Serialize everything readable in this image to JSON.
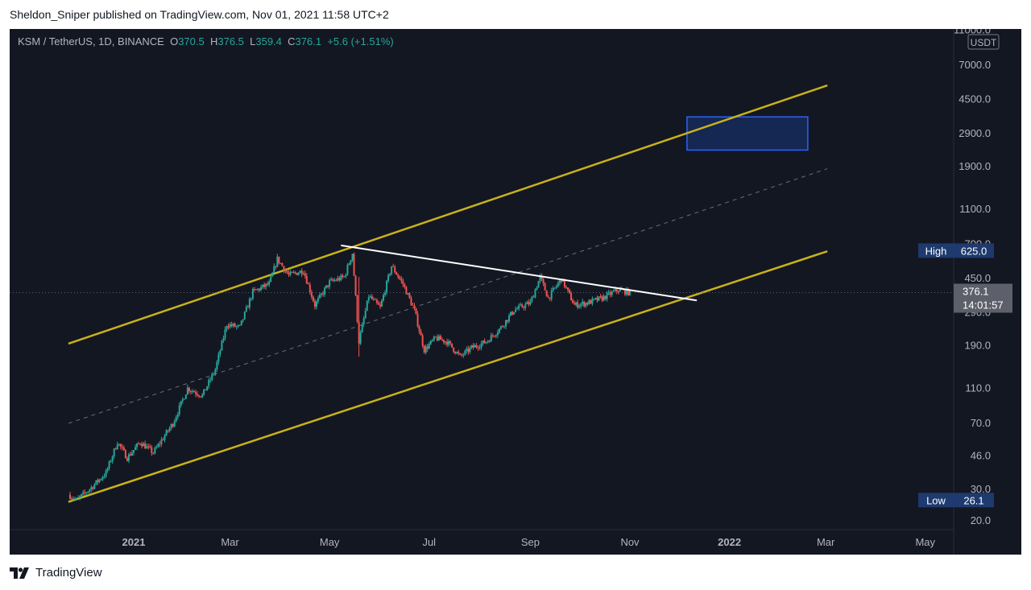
{
  "header": {
    "published_by": "Sheldon_Sniper published on TradingView.com, Nov 01, 2021 11:58 UTC+2"
  },
  "legend": {
    "symbol": "KSM / TetherUS, 1D, BINANCE",
    "open_label": "O",
    "open": "370.5",
    "high_label": "H",
    "high": "376.5",
    "low_label": "L",
    "low": "359.4",
    "close_label": "C",
    "close": "376.1",
    "change": "+5.6 (+1.51%)"
  },
  "footer": {
    "brand": "TradingView"
  },
  "colors": {
    "background": "#131722",
    "up_candle": "#26a69a",
    "down_candle": "#ef5350",
    "channel": "#c9b21a",
    "trendline": "#ffffff",
    "target_box_fill": "#162a5c",
    "target_box_border": "#2962ff",
    "label_bg": "#1e3a6e"
  },
  "chart_data": {
    "type": "candlestick",
    "symbol": "KSM / TetherUS",
    "interval": "1D",
    "exchange": "BINANCE",
    "y_scale": "log",
    "y_unit": "USDT",
    "y_ticks": [
      20.0,
      30.0,
      46.0,
      70.0,
      110.0,
      190.0,
      290.0,
      450.0,
      700.0,
      1100.0,
      1900.0,
      2900.0,
      4500.0,
      7000.0,
      11000.0
    ],
    "y_tick_labels": [
      "20.0",
      "30.0",
      "46.0",
      "70.0",
      "110.0",
      "190.0",
      "290.0",
      "450.0",
      "700.0",
      "1100.0",
      "1900.0",
      "2900.0",
      "4500.0",
      "7000.0",
      "11000.0"
    ],
    "x_ticks": [
      "2021-01-01",
      "2021-03-01",
      "2021-05-01",
      "2021-07-01",
      "2021-09-01",
      "2021-11-01",
      "2022-01-01",
      "2022-03-01",
      "2022-05-01"
    ],
    "x_tick_labels": [
      "2021",
      "Mar",
      "May",
      "Jul",
      "Sep",
      "Nov",
      "2022",
      "Mar",
      "May"
    ],
    "last_price": "376.1",
    "countdown": "14:01:57",
    "high_label": "High",
    "high_value": "625.0",
    "low_label": "Low",
    "low_value": "26.1",
    "price_path": [
      [
        "2020-11-22",
        28
      ],
      [
        "2020-11-27",
        26.1
      ],
      [
        "2020-12-05",
        30
      ],
      [
        "2020-12-15",
        37
      ],
      [
        "2020-12-22",
        55
      ],
      [
        "2020-12-28",
        45
      ],
      [
        "2021-01-05",
        55
      ],
      [
        "2021-01-13",
        48
      ],
      [
        "2021-01-25",
        70
      ],
      [
        "2021-02-03",
        110
      ],
      [
        "2021-02-12",
        100
      ],
      [
        "2021-02-20",
        140
      ],
      [
        "2021-02-27",
        250
      ],
      [
        "2021-03-07",
        240
      ],
      [
        "2021-03-15",
        380
      ],
      [
        "2021-03-25",
        420
      ],
      [
        "2021-03-30",
        580
      ],
      [
        "2021-04-06",
        470
      ],
      [
        "2021-04-15",
        500
      ],
      [
        "2021-04-22",
        320
      ],
      [
        "2021-05-01",
        430
      ],
      [
        "2021-05-10",
        460
      ],
      [
        "2021-05-15",
        625
      ],
      [
        "2021-05-19",
        200
      ],
      [
        "2021-05-25",
        360
      ],
      [
        "2021-06-01",
        310
      ],
      [
        "2021-06-08",
        530
      ],
      [
        "2021-06-15",
        420
      ],
      [
        "2021-06-22",
        300
      ],
      [
        "2021-06-28",
        180
      ],
      [
        "2021-07-05",
        210
      ],
      [
        "2021-07-12",
        200
      ],
      [
        "2021-07-20",
        165
      ],
      [
        "2021-07-27",
        185
      ],
      [
        "2021-08-05",
        200
      ],
      [
        "2021-08-14",
        240
      ],
      [
        "2021-08-22",
        300
      ],
      [
        "2021-09-01",
        330
      ],
      [
        "2021-09-07",
        460
      ],
      [
        "2021-09-12",
        350
      ],
      [
        "2021-09-20",
        450
      ],
      [
        "2021-09-28",
        320
      ],
      [
        "2021-10-06",
        330
      ],
      [
        "2021-10-15",
        350
      ],
      [
        "2021-10-25",
        390
      ],
      [
        "2021-11-01",
        376.1
      ]
    ],
    "annotations": {
      "channel_upper": [
        [
          "2020-11-22",
          195
        ],
        [
          "2022-03-02",
          5400
        ]
      ],
      "channel_lower": [
        [
          "2020-11-22",
          25.5
        ],
        [
          "2022-03-02",
          640
        ]
      ],
      "channel_mid": [
        [
          "2020-11-22",
          70
        ],
        [
          "2022-03-02",
          1850
        ]
      ],
      "resistance_line": [
        [
          "2021-05-08",
          690
        ],
        [
          "2021-12-12",
          340
        ]
      ],
      "target_zone": {
        "from": "2021-12-06",
        "to": "2022-02-18",
        "low": 2350,
        "high": 3600
      }
    }
  }
}
